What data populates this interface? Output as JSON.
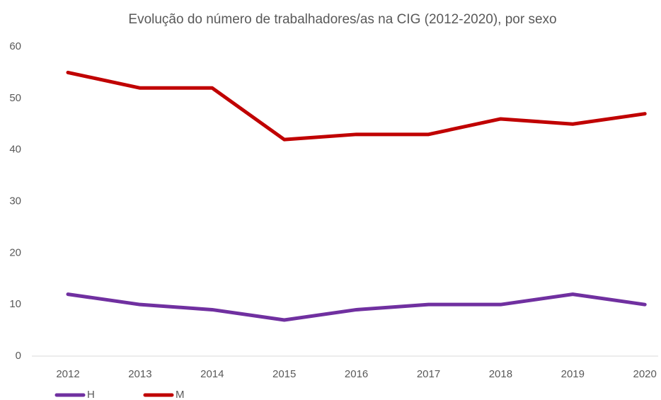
{
  "chart_data": {
    "type": "line",
    "title": "Evolução do número de trabalhadores/as na CIG (2012-2020), por sexo",
    "categories": [
      "2012",
      "2013",
      "2014",
      "2015",
      "2016",
      "2017",
      "2018",
      "2019",
      "2020"
    ],
    "series": [
      {
        "name": "H",
        "color": "#7030a0",
        "values": [
          12,
          10,
          9,
          7,
          9,
          10,
          10,
          12,
          10
        ]
      },
      {
        "name": "M",
        "color": "#c00000",
        "values": [
          55,
          52,
          52,
          42,
          43,
          43,
          46,
          45,
          47
        ]
      }
    ],
    "ylim": [
      0,
      60
    ],
    "yticks": [
      0,
      10,
      20,
      30,
      40,
      50,
      60
    ],
    "grid": false,
    "legend": "bottom-left"
  }
}
